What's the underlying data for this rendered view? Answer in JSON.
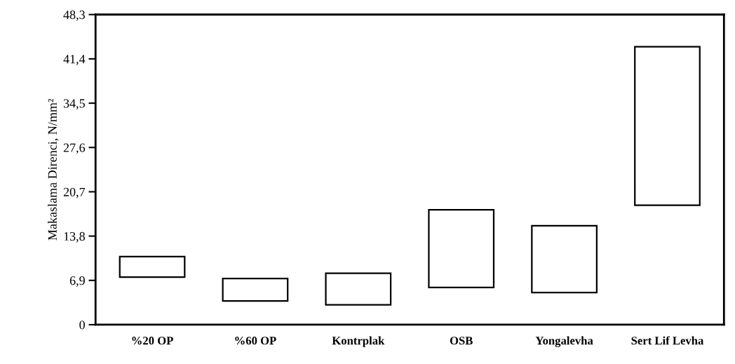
{
  "chart_data": {
    "type": "bar",
    "ylabel": "Makaslama Direnci, N/mm²",
    "categories": [
      "%20 OP",
      "%60 OP",
      "Kontrplak",
      "OSB",
      "Yongalevha",
      "Sert Lif Levha"
    ],
    "base": [
      7.4,
      3.7,
      3.1,
      5.8,
      5.0,
      18.6
    ],
    "values": [
      3.2,
      3.5,
      4.9,
      12.1,
      10.4,
      24.7
    ],
    "color": "#ffffff",
    "ylim": [
      0,
      48.3
    ],
    "yticks": [
      0,
      {
        "value": 6.9,
        "label": "6,9"
      },
      {
        "value": 13.8,
        "label": "13,8"
      },
      {
        "value": 20.7,
        "label": "20,7"
      },
      {
        "value": 27.6,
        "label": "27,6"
      },
      {
        "value": 34.5,
        "label": "34,5"
      },
      {
        "value": 41.4,
        "label": "41,4"
      },
      {
        "value": 48.3,
        "label": "48,3"
      }
    ],
    "grid": false,
    "legend": false
  }
}
